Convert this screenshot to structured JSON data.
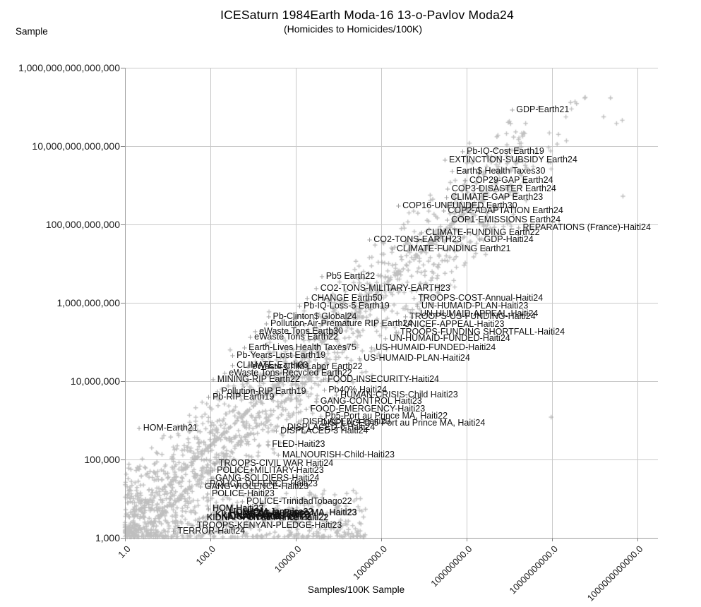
{
  "header": {
    "title": "ICESaturn 1984Earth Moda-16 13-o-Pavlov Moda24",
    "subtitle": "(Homicides to Homicides/100K)"
  },
  "chart_data": {
    "type": "scatter",
    "title": "ICESaturn 1984Earth Moda-16 13-o-Pavlov Moda24",
    "subtitle": "(Homicides to Homicides/100K)",
    "xlabel": "Samples/100K Sample",
    "ylabel": "Sample",
    "x_scale": "log",
    "y_scale": "log",
    "xlim": [
      1,
      1000000000000
    ],
    "ylim": [
      1000,
      1000000000000000
    ],
    "grid": true,
    "legend": "none",
    "marker": "plus",
    "colors": {
      "marker": "#969696",
      "label_text": "#111111",
      "grid": "#c9c9c9",
      "axis": "#9c9c9c"
    },
    "x_ticks": [
      {
        "value": 1,
        "label": "1.0"
      },
      {
        "value": 100,
        "label": "100.0"
      },
      {
        "value": 10000,
        "label": "10000.0"
      },
      {
        "value": 1000000,
        "label": "1000000.0"
      },
      {
        "value": 100000000,
        "label": "100000000.0"
      },
      {
        "value": 10000000000,
        "label": "10000000000.0"
      },
      {
        "value": 1000000000000,
        "label": "1000000000000.0"
      }
    ],
    "y_ticks": [
      {
        "value": 1000,
        "label": "1,000"
      },
      {
        "value": 100000,
        "label": "100,000"
      },
      {
        "value": 10000000,
        "label": "10,000,000"
      },
      {
        "value": 1000000000,
        "label": "1,000,000,000"
      },
      {
        "value": 100000000000,
        "label": "100,000,000,000"
      },
      {
        "value": 10000000000000,
        "label": "10,000,000,000,000"
      },
      {
        "value": 1000000000000000,
        "label": "1,000,000,000,000,000"
      }
    ],
    "labeled_points": [
      {
        "label": "GDP-Earth21",
        "x": 1200000000.0,
        "y": 83000000000000.0
      },
      {
        "label": "Pb-IQ-Cost Earth19",
        "x": 83000000.0,
        "y": 7100000000000.0
      },
      {
        "label": "EXTINCTION-SUBSIDY Earth24",
        "x": 32000000.0,
        "y": 4400000000000.0
      },
      {
        "label": "Earth$ Health Taxes30",
        "x": 47000000.0,
        "y": 2200000000000.0
      },
      {
        "label": "COP29-GAP Earth24",
        "x": 96000000.0,
        "y": 1300000000000.0
      },
      {
        "label": "COP3-DISASTER Earth24",
        "x": 37000000.0,
        "y": 790000000000.0
      },
      {
        "label": "CLIMATE-GAP Earth23",
        "x": 35000000.0,
        "y": 480000000000.0
      },
      {
        "label": "COP16-UNFUNDED Earth30",
        "x": 2600000.0,
        "y": 300000000000.0
      },
      {
        "label": "COP2-ADAPTATION Earth24",
        "x": 30000000.0,
        "y": 220000000000.0
      },
      {
        "label": "COP1-EMISSIONS Earth24",
        "x": 36000000.0,
        "y": 130000000000.0
      },
      {
        "label": "REPARATIONS (France)-Haiti24",
        "x": 1700000000.0,
        "y": 81000000000.0
      },
      {
        "label": "CLIMATE-FUNDING Earth22",
        "x": 9100000.0,
        "y": 61000000000.0
      },
      {
        "label": "CO2-TONS-EARTH23",
        "x": 550000.0,
        "y": 40000000000.0
      },
      {
        "label": "GDP-Haiti24",
        "x": 210000000.0,
        "y": 40000000000.0
      },
      {
        "label": "CLIMATE-FUNDING Earth21",
        "x": 1900000.0,
        "y": 23000000000.0
      },
      {
        "label": "Pb5 Earth22",
        "x": 42000.0,
        "y": 4600000000.0
      },
      {
        "label": "CO2-TONS-MILITARY-EARTH23",
        "x": 31000.0,
        "y": 2300000000.0
      },
      {
        "label": "CHANGE Earth50",
        "x": 19000.0,
        "y": 1300000000.0
      },
      {
        "label": "Pb-IQ-Loss-5 Earth19",
        "x": 12600.0,
        "y": 810000000.0
      },
      {
        "label": "TROOPS-COST-Annual-Haiti24",
        "x": 6000000.0,
        "y": 1300000000.0
      },
      {
        "label": "UN-HUMAID-PLAN-Haiti23",
        "x": 7200000.0,
        "y": 810000000.0
      },
      {
        "label": "UN-HUMAID-APPEAL-Haiti24",
        "x": 6700000.0,
        "y": 510000000.0
      },
      {
        "label": "TROOPS-US-FUNDING-Haiti24",
        "x": 3800000.0,
        "y": 440000000.0
      },
      {
        "label": "Pb-Clinton$ Global24",
        "x": 2400.0,
        "y": 440000000.0
      },
      {
        "label": "Pollution-Air-Premature RIP Earth24",
        "x": 2100.0,
        "y": 290000000.0
      },
      {
        "label": "UNICEF-APPEAL-Haiti23",
        "x": 2800000.0,
        "y": 275000000.0
      },
      {
        "label": "eWaste Tons Earth30",
        "x": 1150.0,
        "y": 180000000.0
      },
      {
        "label": "TROOPS-FUNDING SHORTFALL-Haiti24",
        "x": 2300000.0,
        "y": 175000000.0
      },
      {
        "label": "eWaste Tons Earth22",
        "x": 880.0,
        "y": 130000000.0
      },
      {
        "label": "UN-HUMAID-FUNDED-Haiti24",
        "x": 1300000.0,
        "y": 120000000.0
      },
      {
        "label": "Earth-Lives Health Taxes75",
        "x": 650.0,
        "y": 71000000.0
      },
      {
        "label": "US-HUMAID-FUNDED-Haiti24",
        "x": 610000.0,
        "y": 71000000.0
      },
      {
        "label": "Pb-Years-Lost Earth19",
        "x": 340.0,
        "y": 44000000.0
      },
      {
        "label": "US-HUMAID-PLAN-Haiti24",
        "x": 320000.0,
        "y": 38000000.0
      },
      {
        "label": "CLIMATE-Earth03",
        "x": 340.0,
        "y": 25000000.0
      },
      {
        "label": "eWaste Child Labor Earth22",
        "x": 780.0,
        "y": 23000000.0
      },
      {
        "label": "eWaste Tons-Recycled Earth22",
        "x": 225.0,
        "y": 16000000.0
      },
      {
        "label": "MINING-RIP Earth22",
        "x": 120.0,
        "y": 11000000.0
      },
      {
        "label": "FOOD-INSECURITY-Haiti24",
        "x": 46000.0,
        "y": 11000000.0
      },
      {
        "label": "Pollution-RIP Earth19",
        "x": 150.0,
        "y": 5400000.0
      },
      {
        "label": "Pb40% Haiti24",
        "x": 48000.0,
        "y": 5900000.0
      },
      {
        "label": "Pb-RIP Earth19",
        "x": 93,
        "y": 3900000.0
      },
      {
        "label": "HUMAN-CRISIS-Child Haiti23",
        "x": 91000.0,
        "y": 4400000.0
      },
      {
        "label": "GANG-CONTROL Haiti23",
        "x": 31000.0,
        "y": 3000000.0
      },
      {
        "label": "FOOD-EMERGENCY-Haiti23",
        "x": 18000.0,
        "y": 1900000.0
      },
      {
        "label": "Pb5-Port au Prince MA, Haiti22",
        "x": 40000.0,
        "y": 1260000.0
      },
      {
        "label": "DISPLACED-4 Haiti23",
        "x": 12000.0,
        "y": 890000.0
      },
      {
        "label": "DISPLACED-5 Port au Prince MA, Haiti24",
        "x": 32000.0,
        "y": 830000.0
      },
      {
        "label": "DISPLACED-6 Haiti24",
        "x": 5200.0,
        "y": 650000.0
      },
      {
        "label": "HOM-Earth21",
        "x": 2.2,
        "y": 620000.0
      },
      {
        "label": "DISPLACED-3 Haiti24",
        "x": 3600.0,
        "y": 520000.0
      },
      {
        "label": "FLED-Haiti23",
        "x": 2300.0,
        "y": 240000.0
      },
      {
        "label": "MALNOURISH-Child-Haiti23",
        "x": 4000.0,
        "y": 130000.0
      },
      {
        "label": "TROOPS-CIVIL WAR Haiti24",
        "x": 130.0,
        "y": 78000.0
      },
      {
        "label": "POLICE+MILITARY-Haiti23",
        "x": 117.0,
        "y": 51000.0
      },
      {
        "label": "GANG-SOLDIERS-Haiti24",
        "x": 108.0,
        "y": 33000.0
      },
      {
        "label": "POLICE-DEFENCE-Haiti23",
        "x": 80,
        "y": 23000.0
      },
      {
        "label": "GANG-VIOLENCE-Haiti23",
        "x": 61,
        "y": 20000.0
      },
      {
        "label": "POLICE-Haiti23",
        "x": 89,
        "y": 13000.0
      },
      {
        "label": "POLICE-TrinidadTobago22",
        "x": 575.0,
        "y": 8300.0
      },
      {
        "label": "HOM-Haiti23",
        "x": 93,
        "y": 5500.0,
        "dense": true
      },
      {
        "label": "HOM-Jamaica22",
        "x": 590.0,
        "y": 4500.0,
        "dense": true
      },
      {
        "label": "HOM-Port au Prince MA, Haiti23",
        "x": 230.0,
        "y": 4300.0,
        "dense": true
      },
      {
        "label": "KILLINGS-Gang-Haiti23",
        "x": 108.0,
        "y": 3800.0,
        "dense": true
      },
      {
        "label": "KIDNAP-Haiti23",
        "x": 150.0,
        "y": 3500.0,
        "dense": true
      },
      {
        "label": "GANG-Turf-Haiti22",
        "x": 340.0,
        "y": 3300.0,
        "dense": true
      },
      {
        "label": "KIDNAP-Port au Prince Haiti22",
        "x": 68,
        "y": 3200.0,
        "dense": true
      },
      {
        "label": "TROOPS-KENYAN-PLEDGE-Haiti23",
        "x": 40,
        "y": 2000.0
      },
      {
        "label": "TERROR-Haiti24",
        "x": 14,
        "y": 1450.0
      }
    ],
    "background_scatter": {
      "marker": "plus",
      "color_rgba": [
        148,
        148,
        148,
        0.6
      ],
      "seed": 7,
      "cloud_count": 1500,
      "bottom_band_count": 420,
      "trend_line_count": 240,
      "second_line_count": 110,
      "top_right_count": 28,
      "trend": "y ≈ 2300 × x (slope 1 in log-log)",
      "outliers": [
        [
          9.98,
          6.08
        ],
        [
          11.66,
          11.72
        ],
        [
          10.15,
          13.3
        ]
      ]
    }
  }
}
